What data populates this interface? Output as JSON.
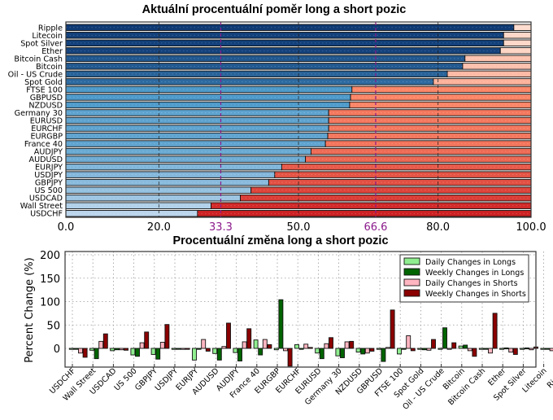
{
  "chart_data": [
    {
      "type": "bar",
      "orientation": "horizontal-stacked",
      "title": "Aktuální procentuální poměr long a short pozic",
      "categories": [
        "Ripple",
        "Litecoin",
        "Spot Silver",
        "Ether",
        "Bitcoin Cash",
        "Bitcoin",
        "Oil - US Crude",
        "Spot Gold",
        "FTSE 100",
        "GBPUSD",
        "NZDUSD",
        "Germany 30",
        "EURUSD",
        "EURCHF",
        "EURGBP",
        "France 40",
        "AUDJPY",
        "AUDUSD",
        "EURJPY",
        "USDJPY",
        "GBPJPY",
        "US 500",
        "USDCAD",
        "Wall Street",
        "USDCHF"
      ],
      "series": [
        {
          "name": "Long",
          "values": [
            96.3,
            94.1,
            94.1,
            93.4,
            85.8,
            85.3,
            82.0,
            79.0,
            61.5,
            61.2,
            61.0,
            56.5,
            56.5,
            56.5,
            56.3,
            55.8,
            52.7,
            51.5,
            46.4,
            44.9,
            43.6,
            39.8,
            37.5,
            31.2,
            28.3
          ]
        },
        {
          "name": "Short",
          "values": [
            3.7,
            5.9,
            5.9,
            6.6,
            14.2,
            14.7,
            18.0,
            21.0,
            38.5,
            38.8,
            39.0,
            43.5,
            43.5,
            43.5,
            43.7,
            44.2,
            47.3,
            48.5,
            53.6,
            55.1,
            56.4,
            60.2,
            62.5,
            68.8,
            71.7
          ]
        }
      ],
      "xlim": [
        0,
        100
      ],
      "xticks": [
        "0.0",
        "20.0",
        "33.3",
        "50.0",
        "66.6",
        "80.0",
        "100.0"
      ],
      "highlight_lines": [
        33.3,
        66.6
      ],
      "grid": true
    },
    {
      "type": "bar",
      "title": "Procentuální změna long a short pozic",
      "ylabel": "Percent Change (%)",
      "ylim": [
        -45,
        205
      ],
      "yticks": [
        "200",
        "150",
        "100",
        "50",
        "0"
      ],
      "categories": [
        "USDCHF",
        "Wall Street",
        "USDCAD",
        "US 500",
        "GBPJPY",
        "USDJPY",
        "EURJPY",
        "AUDUSD",
        "AUDJPY",
        "France 40",
        "EURGBP",
        "EURCHF",
        "EURUSD",
        "Germany 30",
        "NZDUSD",
        "GBPUSD",
        "FTSE 100",
        "Spot Gold",
        "Oil - US Crude",
        "Bitcoin",
        "Bitcoin Cash",
        "Ether",
        "Spot Silver",
        "Litecoin",
        "Ripple"
      ],
      "series": [
        {
          "name": "Daily Changes in Longs",
          "color": "#90ee90",
          "values": [
            -2,
            -4,
            -5,
            -14,
            -13,
            -2,
            -25,
            -11,
            -9,
            18,
            -3,
            8,
            -10,
            -16,
            -8,
            -2,
            -12,
            -2,
            -2,
            5,
            -1,
            0,
            0,
            0,
            0
          ]
        },
        {
          "name": "Weekly Changes in Longs",
          "color": "#006400",
          "values": [
            -2,
            -22,
            -3,
            -17,
            -23,
            -1,
            -2,
            -25,
            -27,
            -14,
            104,
            -1,
            -22,
            -20,
            -12,
            -28,
            -1,
            -3,
            44,
            7,
            -1,
            1,
            1,
            -1,
            1
          ]
        },
        {
          "name": "Daily Changes in Shorts",
          "color": "#ffb6c1",
          "values": [
            -10,
            15,
            -3,
            12,
            13,
            -1,
            19,
            4,
            14,
            19,
            -5,
            9,
            10,
            14,
            -10,
            2,
            27,
            -4,
            -1,
            -5,
            -10,
            -8,
            -3,
            -5,
            6
          ]
        },
        {
          "name": "Weekly Changes in Shorts",
          "color": "#8b0000",
          "values": [
            -19,
            31,
            -4,
            35,
            51,
            -1,
            -6,
            54,
            42,
            8,
            -38,
            2,
            23,
            15,
            -6,
            82,
            -5,
            19,
            12,
            -17,
            75,
            -13,
            3,
            4,
            -4
          ]
        }
      ],
      "legend_position": "top-right",
      "grid": true
    }
  ]
}
